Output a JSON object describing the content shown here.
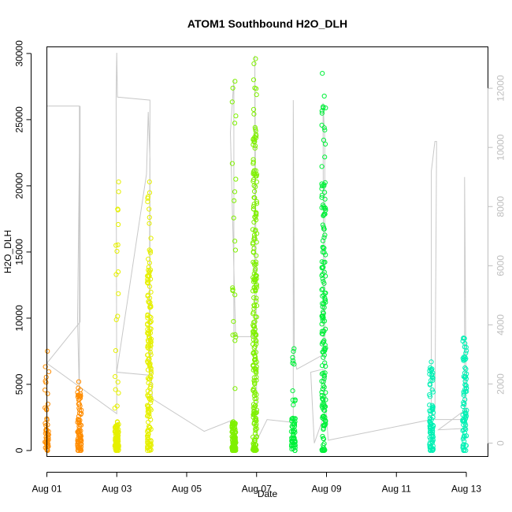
{
  "chart_data": {
    "type": "scatter",
    "title": "ATOM1 Southbound H2O_DLH",
    "xlabel": "Date",
    "ylabel": "H2O_DLH",
    "xlim": [
      0.0,
      12.62
    ],
    "ylim": [
      -450,
      30500
    ],
    "y_right_lim": [
      -450,
      13400
    ],
    "x_ticks": [
      {
        "value": 0,
        "label": "Aug 01"
      },
      {
        "value": 2,
        "label": "Aug 03"
      },
      {
        "value": 4,
        "label": "Aug 05"
      },
      {
        "value": 6,
        "label": "Aug 07"
      },
      {
        "value": 8,
        "label": "Aug 09"
      },
      {
        "value": 10,
        "label": "Aug 11"
      },
      {
        "value": 12,
        "label": "Aug 13"
      }
    ],
    "y_ticks": [
      0,
      5000,
      10000,
      15000,
      20000,
      25000,
      30000
    ],
    "y_right_ticks": [
      0,
      2000,
      4000,
      6000,
      8000,
      10000,
      12000
    ],
    "grid": false,
    "series": [
      {
        "color": "#ff8c00",
        "clusters": [
          {
            "x": 0.0,
            "ymin": 0,
            "ymax": 7500,
            "dense": 2200,
            "n": 55
          },
          {
            "x": 0.93,
            "ymin": 0,
            "ymax": 5200,
            "dense": 4800,
            "n": 80
          }
        ]
      },
      {
        "color": "#e6f000",
        "clusters": [
          {
            "x": 2.0,
            "ymin": 0,
            "ymax": 20300,
            "dense": 2000,
            "n": 110
          },
          {
            "x": 2.93,
            "ymin": 0,
            "ymax": 20300,
            "dense": 15000,
            "n": 170
          }
        ]
      },
      {
        "color": "#7ff000",
        "clusters": [
          {
            "x": 5.35,
            "ymin": 0,
            "ymax": 27900,
            "dense": 2200,
            "n": 120
          },
          {
            "x": 5.95,
            "ymin": 0,
            "ymax": 29600,
            "dense": 24500,
            "n": 230
          }
        ]
      },
      {
        "color": "#00f03a",
        "clusters": [
          {
            "x": 7.05,
            "ymin": 0,
            "ymax": 7700,
            "dense": 2500,
            "n": 60
          },
          {
            "x": 7.92,
            "ymin": 0,
            "ymax": 28500,
            "dense": 20700,
            "n": 170
          }
        ]
      },
      {
        "color": "#00f0b4",
        "clusters": [
          {
            "x": 11.0,
            "ymin": 0,
            "ymax": 6700,
            "dense": 6400,
            "n": 80
          },
          {
            "x": 11.95,
            "ymin": 0,
            "ymax": 8500,
            "dense": 8300,
            "n": 85
          }
        ]
      }
    ],
    "altitude_series": {
      "color": "#c8c8c8",
      "points": [
        [
          0.0,
          2900
        ],
        [
          0.0,
          11400
        ],
        [
          0.93,
          11400
        ],
        [
          0.93,
          1500
        ],
        [
          0.88,
          4200
        ],
        [
          0.93,
          9800
        ],
        [
          0.95,
          11400
        ],
        [
          0.95,
          4100
        ],
        [
          0.0,
          2700
        ],
        [
          2.0,
          1000
        ],
        [
          1.98,
          11700
        ],
        [
          2.0,
          13200
        ],
        [
          2.02,
          11700
        ],
        [
          2.02,
          11700
        ],
        [
          2.95,
          11600
        ],
        [
          2.95,
          11400
        ],
        [
          2.93,
          2300
        ],
        [
          2.0,
          2400
        ],
        [
          2.85,
          9100
        ],
        [
          2.9,
          11200
        ],
        [
          2.95,
          9600
        ],
        [
          2.95,
          3400
        ],
        [
          3.02,
          1500
        ],
        [
          4.5,
          400
        ],
        [
          5.35,
          800
        ],
        [
          5.35,
          12300
        ],
        [
          5.25,
          10500
        ],
        [
          5.4,
          3600
        ],
        [
          5.95,
          3600
        ],
        [
          5.95,
          13100
        ],
        [
          6.0,
          2700
        ],
        [
          6.0,
          200
        ],
        [
          6.05,
          200
        ],
        [
          6.3,
          800
        ],
        [
          7.05,
          700
        ],
        [
          7.05,
          11600
        ],
        [
          7.08,
          2900
        ],
        [
          7.15,
          2500
        ],
        [
          7.92,
          3000
        ],
        [
          7.9,
          11500
        ],
        [
          7.95,
          10300
        ],
        [
          7.95,
          1000
        ],
        [
          7.65,
          0
        ],
        [
          7.55,
          2400
        ],
        [
          7.9,
          2500
        ],
        [
          8.05,
          100
        ],
        [
          11.0,
          800
        ],
        [
          11.0,
          9200
        ],
        [
          11.1,
          10200
        ],
        [
          11.15,
          10200
        ],
        [
          11.1,
          800
        ],
        [
          11.95,
          800
        ],
        [
          11.95,
          9000
        ],
        [
          12.0,
          500
        ],
        [
          11.2,
          450
        ],
        [
          12.05,
          1200
        ]
      ]
    }
  }
}
